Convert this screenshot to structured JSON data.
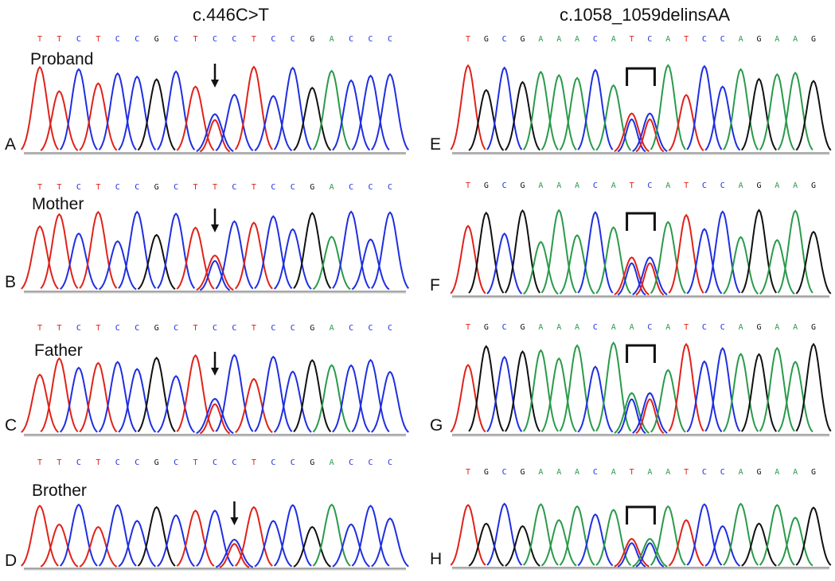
{
  "titles": {
    "left": "c.446C>T",
    "right": "c.1058_1059delinsAA"
  },
  "colors": {
    "A": "#2a9a4a",
    "C": "#1f2fe0",
    "G": "#111111",
    "T": "#e0221a",
    "baseline": "#c8c8c8"
  },
  "left_panels": [
    {
      "letter": "A",
      "person": "Proband",
      "sequence": "TTCTCCGCTCCTCCGACCC",
      "marker": "arrow",
      "marker_pos": 9
    },
    {
      "letter": "B",
      "person": "Mother",
      "sequence": "TTCTCCGCTTCTCCGACCC",
      "marker": "arrow",
      "marker_pos": 9
    },
    {
      "letter": "C",
      "person": "Father",
      "sequence": "TTCTCCGCTCCTCCGACCC",
      "marker": "arrow",
      "marker_pos": 9
    },
    {
      "letter": "D",
      "person": "Brother",
      "sequence": "TTCTCCGCTCCTCCGACCC",
      "marker": "arrow",
      "marker_pos": 10
    }
  ],
  "right_panels": [
    {
      "letter": "E",
      "sequence": "TGCGAAACATCATCCAGAAG",
      "marker": "bracket",
      "marker_start": 9,
      "marker_end": 10
    },
    {
      "letter": "F",
      "sequence": "TGCGAAACATCATCCAGAAG",
      "marker": "bracket",
      "marker_start": 9,
      "marker_end": 10
    },
    {
      "letter": "G",
      "sequence": "TGCGAAACAACATCCAGAAG",
      "marker": "bracket",
      "marker_start": 9,
      "marker_end": 10
    },
    {
      "letter": "H",
      "sequence": "TGCGAAACATAATCCAGAAG",
      "marker": "bracket",
      "marker_start": 9,
      "marker_end": 10
    }
  ]
}
